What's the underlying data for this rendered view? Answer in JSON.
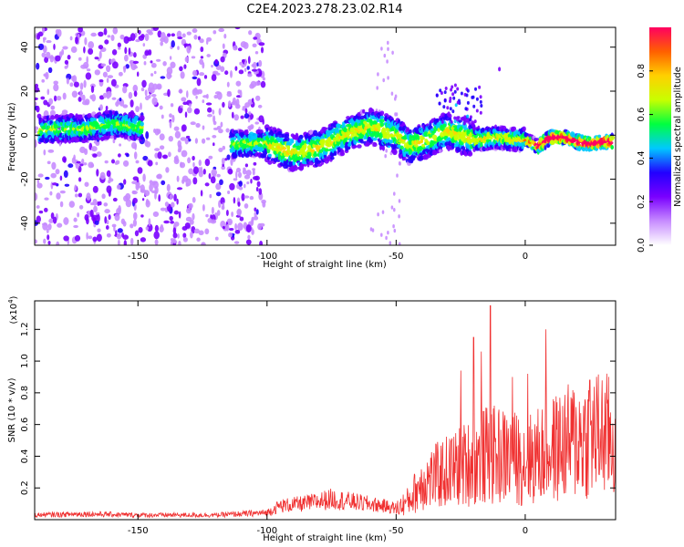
{
  "title": "C2E4.2023.278.23.02.R14",
  "chart_data": [
    {
      "type": "heatmap",
      "xlabel": "Height of straight line (km)",
      "ylabel": "Frequency (Hz)",
      "xlim": [
        -190,
        35
      ],
      "ylim": [
        -50,
        49
      ],
      "xticks": [
        -150,
        -100,
        -50,
        0
      ],
      "yticks": [
        -40,
        -20,
        0,
        20,
        40
      ],
      "colorbar": {
        "label": "Normalized spectral amplitude",
        "range": [
          0.0,
          1.0
        ],
        "ticks": [
          "0.0",
          "0.2",
          "0.4",
          "0.6",
          "0.8"
        ],
        "colors": [
          "#ffffff",
          "#c78cff",
          "#7a00ff",
          "#2200ff",
          "#00c8ff",
          "#00ff40",
          "#c8ff00",
          "#ffd000",
          "#ff6000",
          "#ff0060"
        ]
      },
      "ridge_center_hz": [
        [
          -188,
          2
        ],
        [
          -180,
          3
        ],
        [
          -170,
          3
        ],
        [
          -160,
          5
        ],
        [
          -150,
          4
        ],
        [
          -113,
          -4
        ],
        [
          -100,
          -4
        ],
        [
          -90,
          -8
        ],
        [
          -80,
          -6
        ],
        [
          -70,
          0
        ],
        [
          -60,
          4
        ],
        [
          -50,
          0
        ],
        [
          -45,
          -5
        ],
        [
          -40,
          -3
        ],
        [
          -30,
          2
        ],
        [
          -20,
          -2
        ],
        [
          -10,
          -1
        ],
        [
          -5,
          -2
        ],
        [
          0,
          -2
        ],
        [
          5,
          -5
        ],
        [
          10,
          -1
        ],
        [
          15,
          -1
        ],
        [
          20,
          -3
        ],
        [
          25,
          -4
        ],
        [
          30,
          -3
        ]
      ]
    },
    {
      "type": "line",
      "xlabel": "Height of straight line (km)",
      "ylabel": "SNR (10 * v/v)",
      "multiplier": "(x10",
      "multiplier_exp": "4",
      "multiplier_close": ")",
      "color": "#f03030",
      "xlim": [
        -190,
        35
      ],
      "ylim": [
        0,
        1.38
      ],
      "xticks": [
        -150,
        -100,
        -50,
        0
      ],
      "yticks": [
        0.2,
        0.4,
        0.6,
        0.8,
        1.0,
        1.2
      ],
      "ytick_labels": [
        "0.2",
        "0.4",
        "0.6",
        "0.8",
        "1.0",
        "1.2"
      ],
      "series_envelope": [
        [
          -190,
          0.04
        ],
        [
          -170,
          0.05
        ],
        [
          -150,
          0.04
        ],
        [
          -120,
          0.04
        ],
        [
          -100,
          0.06
        ],
        [
          -95,
          0.12
        ],
        [
          -85,
          0.14
        ],
        [
          -75,
          0.18
        ],
        [
          -65,
          0.15
        ],
        [
          -55,
          0.12
        ],
        [
          -50,
          0.1
        ],
        [
          -45,
          0.18
        ],
        [
          -40,
          0.35
        ],
        [
          -30,
          0.45
        ],
        [
          -25,
          0.5
        ],
        [
          -20,
          0.55
        ],
        [
          -15,
          0.6
        ],
        [
          -10,
          0.6
        ],
        [
          -5,
          0.58
        ],
        [
          0,
          0.55
        ],
        [
          5,
          0.6
        ],
        [
          10,
          0.65
        ],
        [
          15,
          0.7
        ],
        [
          20,
          0.75
        ],
        [
          25,
          0.78
        ],
        [
          30,
          0.8
        ],
        [
          35,
          0.74
        ]
      ],
      "spikes": [
        {
          "x": -13.5,
          "y": 1.35
        },
        {
          "x": 8,
          "y": 1.2
        },
        {
          "x": -20,
          "y": 1.15
        },
        {
          "x": -17,
          "y": 1.06
        },
        {
          "x": -25,
          "y": 0.94
        },
        {
          "x": -5,
          "y": 0.9
        },
        {
          "x": 1,
          "y": 0.92
        },
        {
          "x": 25,
          "y": 0.88
        }
      ]
    }
  ]
}
